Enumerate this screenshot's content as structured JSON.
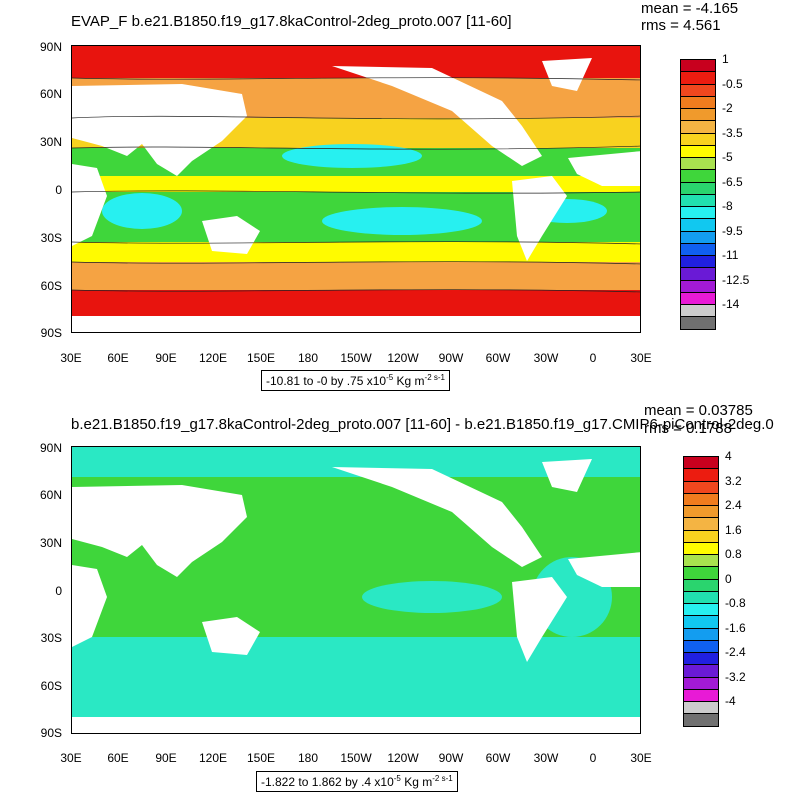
{
  "top": {
    "title": "EVAP_F b.e21.B1850.f19_g17.8kaControl-2deg_proto.007 [11-60]",
    "mean": "mean = -4.165",
    "rms": "rms = 4.561",
    "contour_info": "-10.81 to -0 by .75 x10",
    "contour_exp": "-5",
    "contour_unit": " Kg m",
    "contour_unit_exp": "-2 s-1",
    "legend_labels": [
      "1",
      "-0.5",
      "-2",
      "-3.5",
      "-5",
      "-6.5",
      "-8",
      "-9.5",
      "-11",
      "-12.5",
      "-14"
    ],
    "legend_colors": [
      "#c8001e",
      "#ec1c10",
      "#f0471e",
      "#f07c1e",
      "#f09a2c",
      "#f4b443",
      "#f8d21f",
      "#fffb00",
      "#a9e24f",
      "#3fd63b",
      "#2ad46e",
      "#21e0b0",
      "#27f0f0",
      "#11c8f0",
      "#139df0",
      "#1060f0",
      "#2020e0",
      "#6a1ad6",
      "#a21ad6",
      "#e81ad6",
      "#cccccc",
      "#707070"
    ]
  },
  "bottom": {
    "title": "b.e21.B1850.f19_g17.8kaControl-2deg_proto.007 [11-60] - b.e21.B1850.f19_g17.CMIP6-piControl-2deg.0",
    "mean": "mean = 0.03785",
    "rms": "rms = 0.1788",
    "contour_info": "-1.822 to 1.862 by .4 x10",
    "contour_exp": "-5",
    "contour_unit": " Kg m",
    "contour_unit_exp": "-2 s-1",
    "legend_labels": [
      "4",
      "3.2",
      "2.4",
      "1.6",
      "0.8",
      "0",
      "-0.8",
      "-1.6",
      "-2.4",
      "-3.2",
      "-4"
    ],
    "legend_colors": [
      "#c8001e",
      "#ec1c10",
      "#f0471e",
      "#f07c1e",
      "#f09a2c",
      "#f4b443",
      "#f8d21f",
      "#fffb00",
      "#a9e24f",
      "#3fd63b",
      "#2ad46e",
      "#21e0b0",
      "#27f0f0",
      "#11c8f0",
      "#139df0",
      "#1060f0",
      "#2020e0",
      "#6a1ad6",
      "#a21ad6",
      "#e81ad6",
      "#cccccc",
      "#707070"
    ]
  },
  "lat_labels": [
    "90N",
    "60N",
    "30N",
    "0",
    "30S",
    "60S",
    "90S"
  ],
  "lon_labels": [
    "30E",
    "60E",
    "90E",
    "120E",
    "150E",
    "180",
    "150W",
    "120W",
    "90W",
    "60W",
    "30W",
    "0",
    "30E"
  ]
}
